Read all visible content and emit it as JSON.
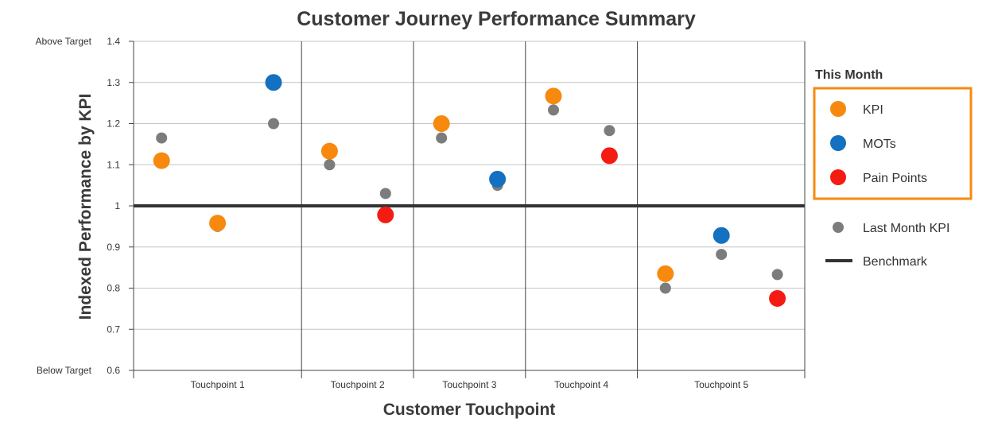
{
  "chart_data": {
    "type": "scatter",
    "title": "Customer Journey Performance Summary",
    "xlabel": "Customer Touchpoint",
    "ylabel": "Indexed Performance by KPI",
    "ylim": [
      0.6,
      1.4
    ],
    "yticks": [
      "0.6",
      "0.7",
      "0.8",
      "0.9",
      "1",
      "1.1",
      "1.2",
      "1.3",
      "1.4"
    ],
    "upper_label": "Above Target",
    "lower_label": "Below Target",
    "benchmark": 1,
    "categories": [
      "Touchpoint 1",
      "Touchpoint 2",
      "Touchpoint 3",
      "Touchpoint 4",
      "Touchpoint 5"
    ],
    "category_slots": [
      3,
      2,
      2,
      2,
      3
    ],
    "grid": true,
    "legend_position": "right",
    "legend": {
      "heading": "This Month",
      "kpi": "KPI",
      "mots": "MOTs",
      "pain": "Pain Points",
      "last": "Last Month KPI",
      "bench": "Benchmark"
    },
    "colors": {
      "kpi": "#f7890f",
      "mots": "#1470c0",
      "pain": "#f41b12",
      "last": "#7c7c7c",
      "bench": "#333333",
      "legend_box": "#f7890f"
    },
    "points": [
      {
        "slot": 0,
        "series": "kpi",
        "value": 1.11,
        "last": 1.165
      },
      {
        "slot": 1,
        "series": "kpi",
        "value": 0.958,
        "last": 0.95
      },
      {
        "slot": 2,
        "series": "mots",
        "value": 1.3,
        "last": 1.2
      },
      {
        "slot": 3,
        "series": "kpi",
        "value": 1.133,
        "last": 1.1
      },
      {
        "slot": 4,
        "series": "pain",
        "value": 0.978,
        "last": 1.03
      },
      {
        "slot": 5,
        "series": "kpi",
        "value": 1.2,
        "last": 1.165
      },
      {
        "slot": 6,
        "series": "mots",
        "value": 1.065,
        "last": 1.05
      },
      {
        "slot": 7,
        "series": "kpi",
        "value": 1.267,
        "last": 1.233
      },
      {
        "slot": 8,
        "series": "pain",
        "value": 1.122,
        "last": 1.183
      },
      {
        "slot": 9,
        "series": "kpi",
        "value": 0.835,
        "last": 0.8
      },
      {
        "slot": 10,
        "series": "mots",
        "value": 0.928,
        "last": 0.882
      },
      {
        "slot": 11,
        "series": "pain",
        "value": 0.775,
        "last": 0.833
      }
    ]
  }
}
